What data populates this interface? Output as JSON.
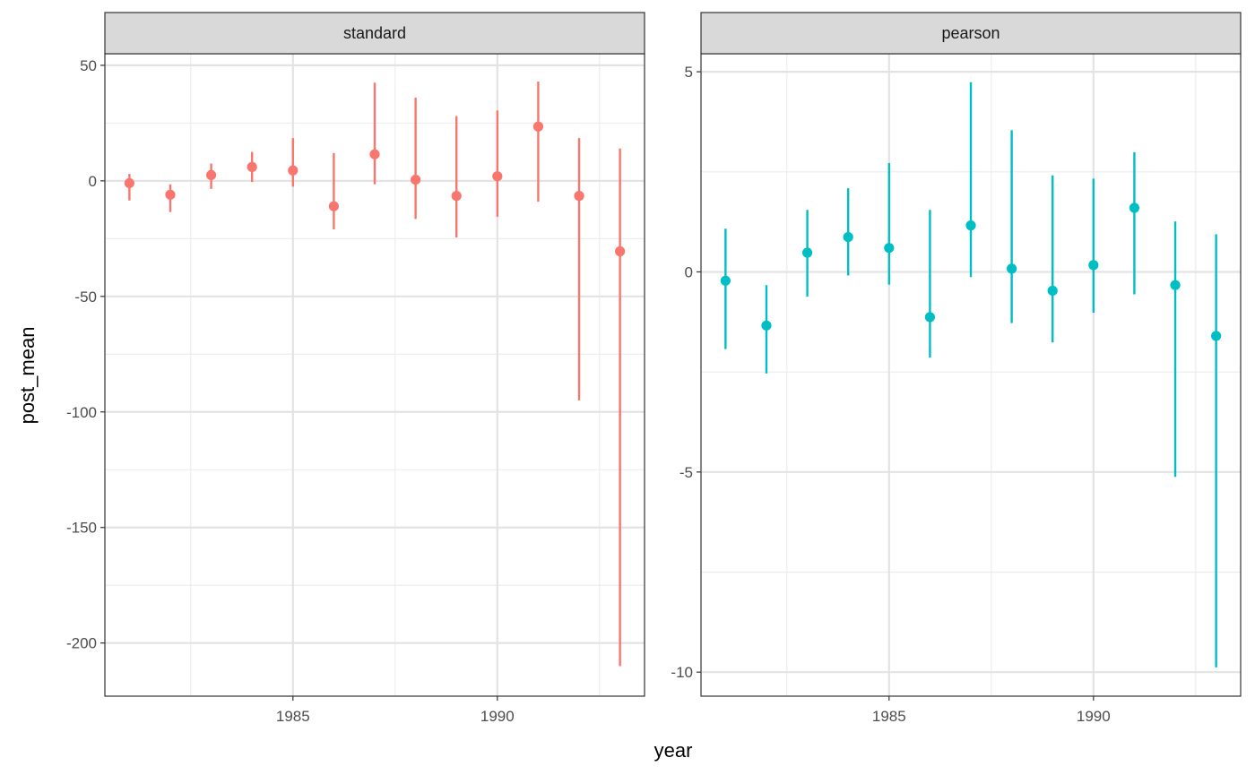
{
  "chart_data": {
    "type": "scatter",
    "geom": "point-with-errorbars",
    "xlabel": "year",
    "ylabel": "post_mean",
    "panels": [
      {
        "label": "standard",
        "color": "#F8766D",
        "xlim": [
          1980.4,
          1993.6
        ],
        "ylim": [
          -223,
          55
        ],
        "xticks": [
          1985,
          1990
        ],
        "yticks": [
          50,
          0,
          -50,
          -100,
          -150,
          -200
        ],
        "ytick_labels": [
          "50",
          "0",
          "-50",
          "-100",
          "-150",
          "-200"
        ],
        "points": [
          {
            "x": 1981,
            "y": -1,
            "lo": -8.5,
            "hi": 3
          },
          {
            "x": 1982,
            "y": -6,
            "lo": -13.5,
            "hi": -1.5
          },
          {
            "x": 1983,
            "y": 2.5,
            "lo": -3.5,
            "hi": 7.5
          },
          {
            "x": 1984,
            "y": 6,
            "lo": -0.5,
            "hi": 12.5
          },
          {
            "x": 1985,
            "y": 4.5,
            "lo": -2.5,
            "hi": 18.5
          },
          {
            "x": 1986,
            "y": -11,
            "lo": -21,
            "hi": 12
          },
          {
            "x": 1987,
            "y": 11.5,
            "lo": -1.5,
            "hi": 42.5
          },
          {
            "x": 1988,
            "y": 0.5,
            "lo": -16.5,
            "hi": 36
          },
          {
            "x": 1989,
            "y": -6.5,
            "lo": -24.5,
            "hi": 28
          },
          {
            "x": 1990,
            "y": 2,
            "lo": -15.5,
            "hi": 30.5
          },
          {
            "x": 1991,
            "y": 23.5,
            "lo": -9,
            "hi": 43
          },
          {
            "x": 1992,
            "y": -6.5,
            "lo": -95,
            "hi": 18.5
          },
          {
            "x": 1993,
            "y": -30.5,
            "lo": -210,
            "hi": 14
          }
        ]
      },
      {
        "label": "pearson",
        "color": "#00BFC4",
        "xlim": [
          1980.4,
          1993.6
        ],
        "ylim": [
          -10.6,
          5.45
        ],
        "xticks": [
          1985,
          1990
        ],
        "yticks": [
          5,
          0,
          -5,
          -10
        ],
        "ytick_labels": [
          "5",
          "0",
          "-5",
          "-10"
        ],
        "points": [
          {
            "x": 1981,
            "y": -0.22,
            "lo": -1.93,
            "hi": 1.08
          },
          {
            "x": 1982,
            "y": -1.34,
            "lo": -2.54,
            "hi": -0.33
          },
          {
            "x": 1983,
            "y": 0.48,
            "lo": -0.62,
            "hi": 1.55
          },
          {
            "x": 1984,
            "y": 0.87,
            "lo": -0.09,
            "hi": 2.09
          },
          {
            "x": 1985,
            "y": 0.6,
            "lo": -0.32,
            "hi": 2.72
          },
          {
            "x": 1986,
            "y": -1.13,
            "lo": -2.14,
            "hi": 1.55
          },
          {
            "x": 1987,
            "y": 1.16,
            "lo": -0.13,
            "hi": 4.74
          },
          {
            "x": 1988,
            "y": 0.08,
            "lo": -1.28,
            "hi": 3.54
          },
          {
            "x": 1989,
            "y": -0.47,
            "lo": -1.76,
            "hi": 2.41
          },
          {
            "x": 1990,
            "y": 0.17,
            "lo": -1.02,
            "hi": 2.33
          },
          {
            "x": 1991,
            "y": 1.6,
            "lo": -0.56,
            "hi": 2.99
          },
          {
            "x": 1992,
            "y": -0.33,
            "lo": -5.12,
            "hi": 1.26
          },
          {
            "x": 1993,
            "y": -1.6,
            "lo": -9.88,
            "hi": 0.94
          }
        ]
      }
    ],
    "grid": true,
    "legend": "none",
    "theme": "bw"
  }
}
